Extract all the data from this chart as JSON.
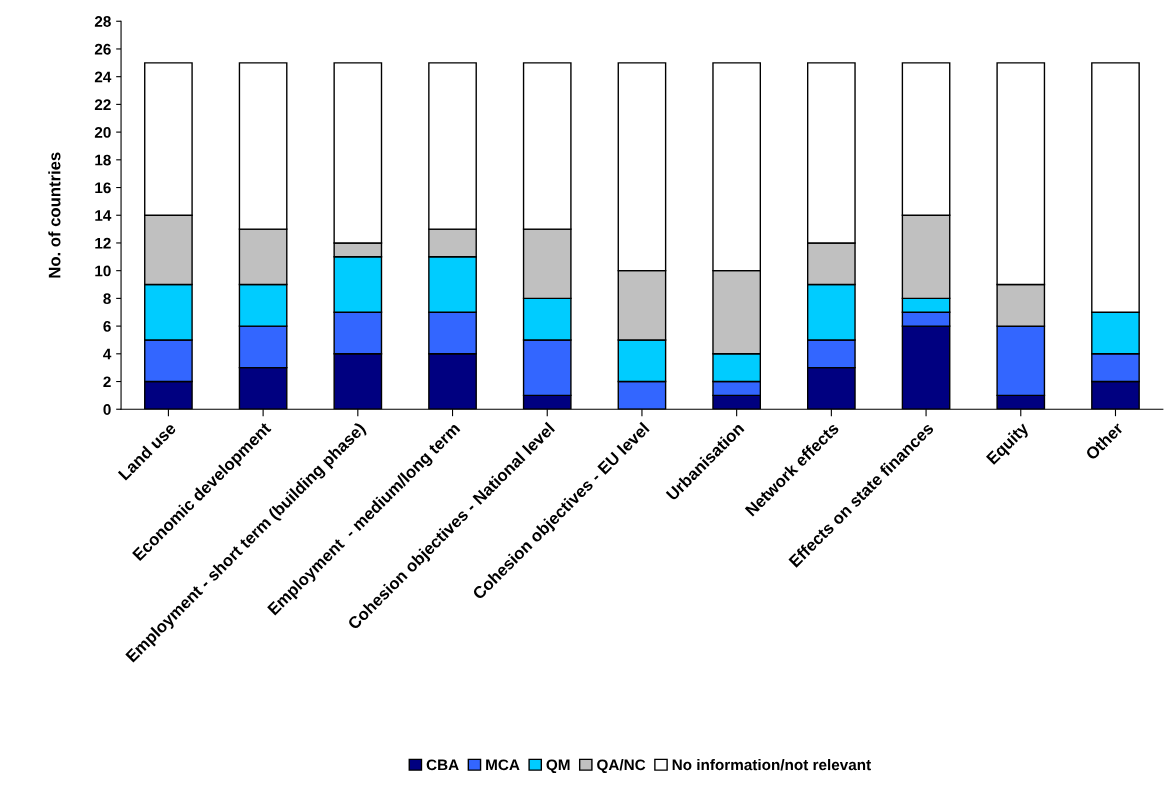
{
  "chart_data": {
    "type": "bar",
    "stacked": true,
    "ylabel": "No. of countries",
    "categories": [
      "Land use",
      "Economic development",
      "Employment - short term (building phase)",
      "Employment  - medium/long term",
      "Cohesion objectives - National level",
      "Cohesion objectives - EU level",
      "Urbanisation",
      "Network effects",
      "Effects on state finances",
      "Equity",
      "Other"
    ],
    "series": [
      {
        "name": "CBA",
        "color": "#000080",
        "values": [
          2,
          3,
          4,
          4,
          1,
          0,
          1,
          3,
          6,
          1,
          2
        ]
      },
      {
        "name": "MCA",
        "color": "#3366ff",
        "values": [
          3,
          3,
          3,
          3,
          4,
          2,
          1,
          2,
          1,
          5,
          2
        ]
      },
      {
        "name": "QM",
        "color": "#00ccff",
        "values": [
          4,
          3,
          4,
          4,
          3,
          3,
          2,
          4,
          1,
          0,
          3
        ]
      },
      {
        "name": "QA/NC",
        "color": "#c0c0c0",
        "values": [
          5,
          4,
          1,
          2,
          5,
          5,
          6,
          3,
          6,
          3,
          0
        ]
      },
      {
        "name": "No information/not relevant",
        "color": "#ffffff",
        "values": [
          11,
          12,
          13,
          12,
          12,
          15,
          15,
          13,
          11,
          16,
          18
        ]
      }
    ],
    "ylim": [
      0,
      28
    ],
    "yticks": [
      0,
      2,
      4,
      6,
      8,
      10,
      12,
      14,
      16,
      18,
      20,
      22,
      24,
      26,
      28
    ],
    "grid": false,
    "legend": "bottom"
  }
}
